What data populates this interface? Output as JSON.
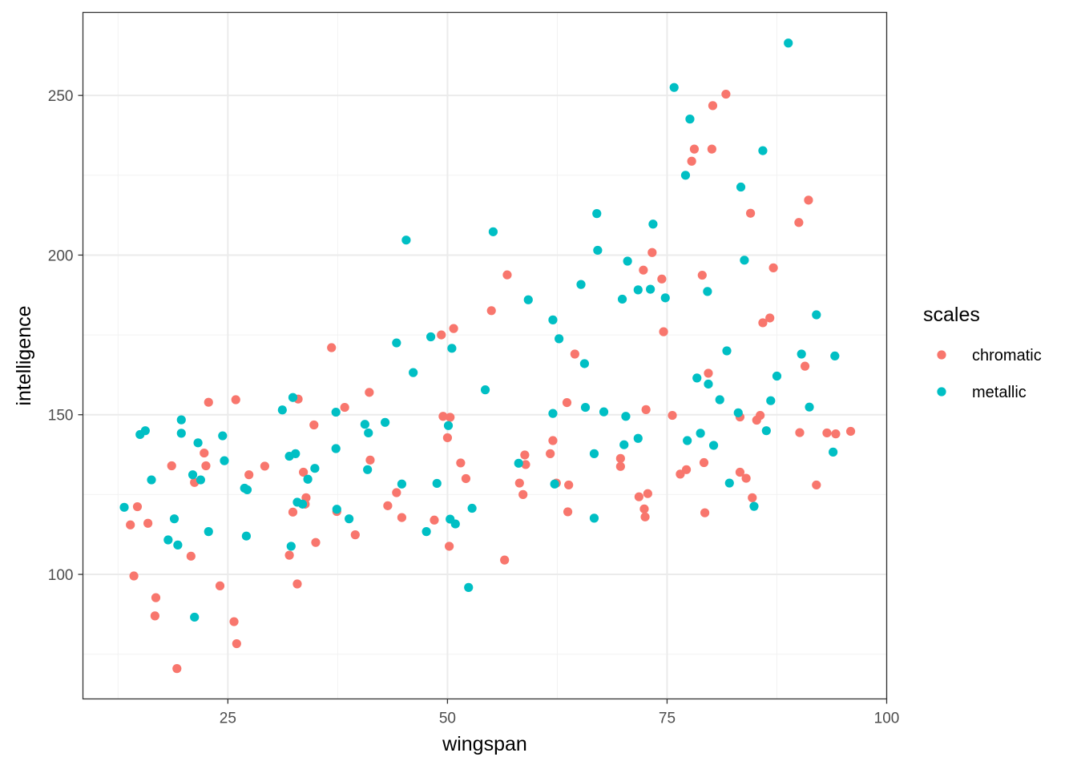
{
  "chart_data": {
    "type": "scatter",
    "xlabel": "wingspan",
    "ylabel": "intelligence",
    "xlim": [
      8.5,
      100
    ],
    "ylim": [
      61,
      276
    ],
    "x_ticks": [
      25,
      50,
      75,
      100
    ],
    "y_ticks": [
      100,
      150,
      200,
      250
    ],
    "x_minor": [
      12.5,
      37.5,
      62.5,
      87.5
    ],
    "y_minor": [
      75,
      125,
      175,
      225
    ],
    "grid": true,
    "legend": {
      "title": "scales",
      "position": "right"
    },
    "series": [
      {
        "name": "chromatic",
        "color": "#F8766D",
        "points": [
          [
            13.9,
            115.5
          ],
          [
            14.7,
            121.2
          ],
          [
            14.3,
            99.5
          ],
          [
            15.9,
            116
          ],
          [
            16.8,
            92.7
          ],
          [
            16.7,
            87
          ],
          [
            18.6,
            134
          ],
          [
            19.2,
            70.5
          ],
          [
            20.8,
            105.7
          ],
          [
            21.2,
            128.8
          ],
          [
            22.3,
            138
          ],
          [
            22.5,
            134
          ],
          [
            22.8,
            153.9
          ],
          [
            24.1,
            96.4
          ],
          [
            25.9,
            154.7
          ],
          [
            25.7,
            85.2
          ],
          [
            26,
            78.3
          ],
          [
            27.4,
            131.2
          ],
          [
            29.2,
            133.9
          ],
          [
            32,
            106
          ],
          [
            32.4,
            119.5
          ],
          [
            32.9,
            97
          ],
          [
            33,
            154.9
          ],
          [
            33.6,
            132
          ],
          [
            33.8,
            122
          ],
          [
            33.9,
            124
          ],
          [
            34.8,
            146.8
          ],
          [
            35,
            110
          ],
          [
            36.8,
            171
          ],
          [
            37.4,
            119.7
          ],
          [
            38.3,
            152.3
          ],
          [
            39.5,
            112.4
          ],
          [
            41.1,
            157
          ],
          [
            41.2,
            135.8
          ],
          [
            43.2,
            121.5
          ],
          [
            44.2,
            125.6
          ],
          [
            44.8,
            117.8
          ],
          [
            48.5,
            117
          ],
          [
            49.3,
            175
          ],
          [
            49.5,
            149.5
          ],
          [
            50,
            142.8
          ],
          [
            50.3,
            149.2
          ],
          [
            50.7,
            177
          ],
          [
            50.2,
            108.8
          ],
          [
            51.5,
            134.9
          ],
          [
            52.1,
            130
          ],
          [
            55,
            182.6
          ],
          [
            56.5,
            104.5
          ],
          [
            56.8,
            193.8
          ],
          [
            58.2,
            128.6
          ],
          [
            58.8,
            137.4
          ],
          [
            58.9,
            134.4
          ],
          [
            58.6,
            125
          ],
          [
            61.7,
            137.8
          ],
          [
            62,
            141.9
          ],
          [
            62.4,
            128.6
          ],
          [
            63.6,
            153.8
          ],
          [
            63.8,
            128
          ],
          [
            63.7,
            119.6
          ],
          [
            64.5,
            169
          ],
          [
            69.7,
            136.3
          ],
          [
            69.7,
            133.8
          ],
          [
            71.8,
            124.3
          ],
          [
            72.3,
            195.3
          ],
          [
            72.4,
            120.5
          ],
          [
            72.5,
            118
          ],
          [
            72.6,
            151.6
          ],
          [
            72.8,
            125.3
          ],
          [
            73.3,
            200.8
          ],
          [
            74.4,
            192.5
          ],
          [
            74.6,
            176
          ],
          [
            75.6,
            149.8
          ],
          [
            76.5,
            131.4
          ],
          [
            77.2,
            132.8
          ],
          [
            77.8,
            229.4
          ],
          [
            78.1,
            233.2
          ],
          [
            79.0,
            193.7
          ],
          [
            79.2,
            135
          ],
          [
            79.3,
            119.3
          ],
          [
            79.7,
            163
          ],
          [
            80.2,
            246.8
          ],
          [
            81.7,
            250.4
          ],
          [
            80.1,
            233.2
          ],
          [
            83.3,
            149.3
          ],
          [
            83.3,
            132
          ],
          [
            84,
            130.1
          ],
          [
            84.5,
            213.1
          ],
          [
            84.7,
            124
          ],
          [
            85.2,
            148.3
          ],
          [
            85.6,
            149.8
          ],
          [
            85.9,
            178.8
          ],
          [
            86.7,
            180.3
          ],
          [
            87.1,
            196
          ],
          [
            90,
            210.2
          ],
          [
            90.1,
            144.4
          ],
          [
            90.7,
            165.2
          ],
          [
            91.1,
            217.2
          ],
          [
            92,
            128
          ],
          [
            93.2,
            144.3
          ],
          [
            94.2,
            144
          ],
          [
            95.9,
            144.8
          ]
        ]
      },
      {
        "name": "metallic",
        "color": "#00BFC4",
        "points": [
          [
            13.2,
            121
          ],
          [
            15,
            143.8
          ],
          [
            15.6,
            145
          ],
          [
            16.3,
            129.6
          ],
          [
            18.2,
            110.8
          ],
          [
            18.9,
            117.4
          ],
          [
            19.3,
            109.2
          ],
          [
            19.7,
            148.4
          ],
          [
            19.7,
            144.2
          ],
          [
            21,
            131.2
          ],
          [
            21.2,
            86.6
          ],
          [
            21.6,
            141.2
          ],
          [
            21.9,
            129.6
          ],
          [
            22.8,
            113.4
          ],
          [
            24.4,
            143.4
          ],
          [
            24.6,
            135.6
          ],
          [
            26.9,
            127
          ],
          [
            27.1,
            112
          ],
          [
            27.2,
            126.5
          ],
          [
            31.2,
            151.5
          ],
          [
            32,
            137
          ],
          [
            32.2,
            108.8
          ],
          [
            32.4,
            155.4
          ],
          [
            32.7,
            137.8
          ],
          [
            32.9,
            122.6
          ],
          [
            33.5,
            122
          ],
          [
            34.1,
            129.8
          ],
          [
            34.9,
            133.2
          ],
          [
            37.3,
            150.8
          ],
          [
            37.3,
            139.4
          ],
          [
            37.4,
            120.4
          ],
          [
            38.8,
            117.4
          ],
          [
            40.6,
            147
          ],
          [
            40.9,
            132.8
          ],
          [
            41,
            144.3
          ],
          [
            42.9,
            147.6
          ],
          [
            44.2,
            172.5
          ],
          [
            44.8,
            128.3
          ],
          [
            45.3,
            204.7
          ],
          [
            46.1,
            163.2
          ],
          [
            47.6,
            113.4
          ],
          [
            48.1,
            174.4
          ],
          [
            48.8,
            128.5
          ],
          [
            50.1,
            146.6
          ],
          [
            50.3,
            117.3
          ],
          [
            50.5,
            170.8
          ],
          [
            50.9,
            115.8
          ],
          [
            52.4,
            95.9
          ],
          [
            52.8,
            120.7
          ],
          [
            54.3,
            157.8
          ],
          [
            55.2,
            207.3
          ],
          [
            58.1,
            134.8
          ],
          [
            59.2,
            186
          ],
          [
            62,
            179.7
          ],
          [
            62,
            150.4
          ],
          [
            62.2,
            128.3
          ],
          [
            62.7,
            173.8
          ],
          [
            65.2,
            190.8
          ],
          [
            65.6,
            166
          ],
          [
            65.7,
            152.3
          ],
          [
            66.7,
            137.8
          ],
          [
            66.7,
            117.6
          ],
          [
            67,
            213
          ],
          [
            67.1,
            201.5
          ],
          [
            67.8,
            150.9
          ],
          [
            69.9,
            186.2
          ],
          [
            70.1,
            140.6
          ],
          [
            70.3,
            149.5
          ],
          [
            70.5,
            198.1
          ],
          [
            71.7,
            142.6
          ],
          [
            71.7,
            189.1
          ],
          [
            73.1,
            189.3
          ],
          [
            73.4,
            209.7
          ],
          [
            74.8,
            186.6
          ],
          [
            75.8,
            252.5
          ],
          [
            77.1,
            225
          ],
          [
            77.3,
            141.9
          ],
          [
            77.6,
            242.6
          ],
          [
            78.4,
            161.5
          ],
          [
            78.8,
            144.2
          ],
          [
            79.6,
            188.6
          ],
          [
            79.7,
            159.6
          ],
          [
            80.3,
            140.4
          ],
          [
            81,
            154.7
          ],
          [
            81.8,
            170
          ],
          [
            82.1,
            128.6
          ],
          [
            83.1,
            150.6
          ],
          [
            83.4,
            221.3
          ],
          [
            83.8,
            198.4
          ],
          [
            84.9,
            121.3
          ],
          [
            85.9,
            232.7
          ],
          [
            86.3,
            145
          ],
          [
            86.8,
            154.4
          ],
          [
            87.5,
            162.1
          ],
          [
            88.8,
            266.4
          ],
          [
            90.3,
            169
          ],
          [
            91.2,
            152.4
          ],
          [
            92,
            181.3
          ],
          [
            93.9,
            138.3
          ],
          [
            94.1,
            168.4
          ]
        ]
      }
    ]
  }
}
